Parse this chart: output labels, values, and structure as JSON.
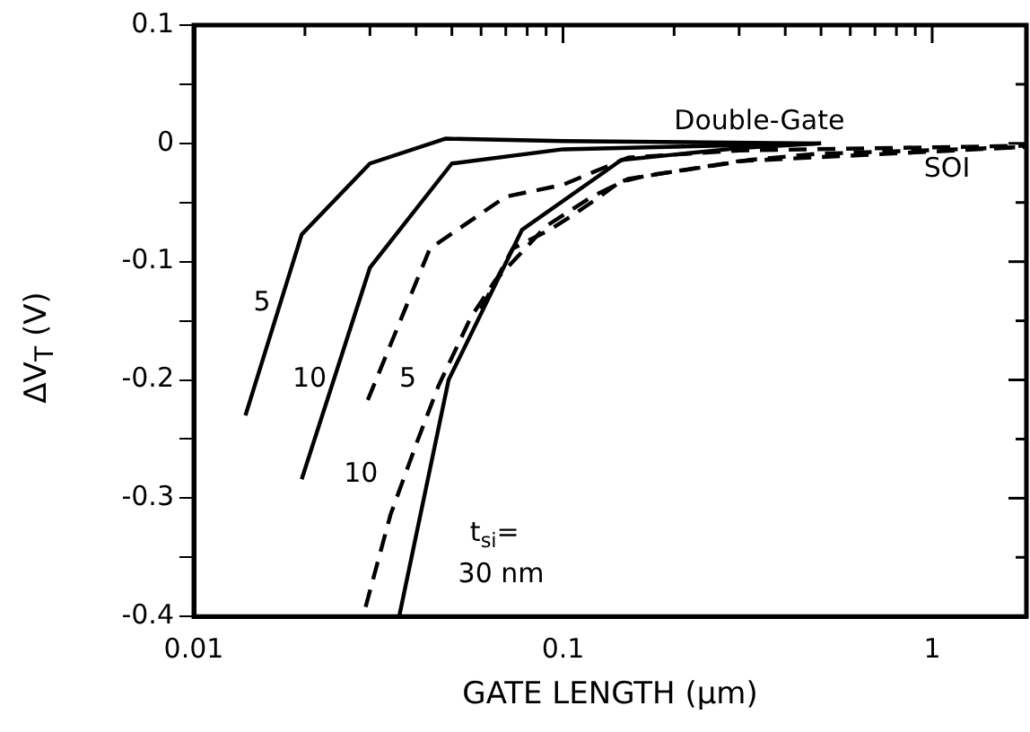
{
  "chart_data": {
    "type": "line",
    "xlabel": "GATE LENGTH (μm)",
    "ylabel": "ΔV$_{T}$ (V)",
    "log": "x",
    "xlim": [
      0.01,
      1.8
    ],
    "xticks": [
      0.01,
      {
        "value": 0.02,
        "label": null
      },
      {
        "value": 0.03,
        "label": null
      },
      {
        "value": 0.04,
        "label": null
      },
      {
        "value": 0.05,
        "label": null
      },
      {
        "value": 0.06,
        "label": null
      },
      {
        "value": 0.07,
        "label": null
      },
      {
        "value": 0.08,
        "label": null
      },
      {
        "value": 0.09,
        "label": null
      },
      0.1,
      {
        "value": 0.2,
        "label": null
      },
      {
        "value": 0.3,
        "label": null
      },
      {
        "value": 0.4,
        "label": null
      },
      {
        "value": 0.5,
        "label": null
      },
      {
        "value": 0.6,
        "label": null
      },
      {
        "value": 0.7,
        "label": null
      },
      {
        "value": 0.8,
        "label": null
      },
      {
        "value": 0.9,
        "label": null
      },
      1
    ],
    "ylim": [
      -0.4,
      0.1
    ],
    "yticks": [
      -0.4,
      {
        "value": -0.35,
        "label": null
      },
      -0.3,
      {
        "value": -0.25,
        "label": null
      },
      -0.2,
      {
        "value": -0.15,
        "label": null
      },
      -0.1,
      {
        "value": -0.05,
        "label": null
      },
      0,
      {
        "value": 0.05,
        "label": null
      },
      0.1
    ],
    "grid": false,
    "legend": false,
    "marker": "none",
    "series": [
      {
        "color": "#000000",
        "line_style": "solid",
        "x": [
          0.0138,
          0.0196,
          0.03,
          0.048,
          0.1,
          0.5
        ],
        "values": [
          -0.23,
          -0.077,
          -0.017,
          0.004,
          0.002,
          0
        ]
      },
      {
        "color": "#000000",
        "line_style": "solid",
        "x": [
          0.0196,
          0.03,
          0.05,
          0.1,
          0.5
        ],
        "values": [
          -0.284,
          -0.105,
          -0.017,
          -0.005,
          0
        ]
      },
      {
        "color": "#000000",
        "line_style": "solid",
        "x": [
          0.036,
          0.049,
          0.0775,
          0.144,
          0.3,
          0.5
        ],
        "values": [
          -0.4,
          -0.2,
          -0.073,
          -0.014,
          -0.004,
          0
        ]
      },
      {
        "color": "#000000",
        "line_style": "dashed",
        "x": [
          0.0296,
          0.0436,
          0.07,
          0.1,
          0.15,
          0.3,
          1.8
        ],
        "values": [
          -0.217,
          -0.089,
          -0.045,
          -0.035,
          -0.012,
          -0.006,
          -0.002
        ]
      },
      {
        "color": "#000000",
        "line_style": "dashed",
        "x": [
          0.0292,
          0.0341,
          0.0403,
          0.046,
          0.0563,
          0.0655,
          0.09,
          0.12,
          0.15,
          0.3,
          1.8
        ],
        "values": [
          -0.392,
          -0.314,
          -0.252,
          -0.205,
          -0.147,
          -0.116,
          -0.07,
          -0.045,
          -0.03,
          -0.015,
          -0.003
        ]
      },
      {
        "color": "#000000",
        "line_style": "dashed",
        "x": [
          0.06,
          0.073,
          0.092,
          0.106,
          0.122,
          0.142,
          0.17,
          0.22,
          0.32,
          0.48,
          1.8
        ],
        "values": [
          -0.14,
          -0.089,
          -0.073,
          -0.061,
          -0.048,
          -0.033,
          -0.027,
          -0.022,
          -0.014,
          -0.009,
          -0.003
        ]
      }
    ],
    "annotations": [
      "5",
      "10",
      "5",
      "10",
      "t$_{si}$=",
      "30 nm",
      "Double-Gate",
      "SOI"
    ]
  }
}
